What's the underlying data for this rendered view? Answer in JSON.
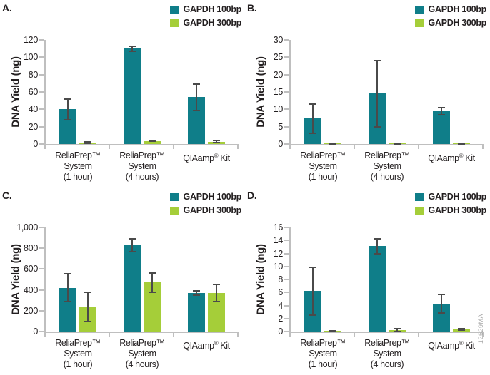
{
  "figure": {
    "watermark": "12629MA",
    "colors": {
      "series_100bp": "#0f7e89",
      "series_300bp": "#a5ce39",
      "axis": "#bfbfbf",
      "error_bar": "#4a4a4a",
      "text": "#231f20",
      "watermark": "#a8a8a8"
    }
  },
  "chart_data": [
    {
      "panel": "A.",
      "type": "bar",
      "title": "",
      "xlabel": "",
      "ylabel": "DNA Yield (ng)",
      "ylim": [
        0,
        120
      ],
      "yticks": [
        0,
        20,
        40,
        60,
        80,
        100,
        120
      ],
      "ytick_labels": [
        "0",
        "20",
        "40",
        "60",
        "80",
        "100",
        "120"
      ],
      "grid": false,
      "legend_position": "top-right",
      "categories": [
        "ReliaPrep™ System (1 hour)",
        "ReliaPrep™ System (4 hours)",
        "QIAamp® Kit"
      ],
      "category_lines": [
        [
          "ReliaPrep™",
          "System",
          "(1 hour)"
        ],
        [
          "ReliaPrep™",
          "System",
          "(4 hours)"
        ],
        [
          "QIAamp® Kit"
        ]
      ],
      "series": [
        {
          "name": "GAPDH 100bp",
          "values": [
            40,
            110,
            54
          ],
          "errors": [
            12,
            3,
            15
          ]
        },
        {
          "name": "GAPDH 300bp",
          "values": [
            1.5,
            3.5,
            2.8
          ],
          "errors": [
            0.7,
            0.5,
            1.2
          ]
        }
      ]
    },
    {
      "panel": "B.",
      "type": "bar",
      "title": "",
      "xlabel": "",
      "ylabel": "DNA Yield (ng)",
      "ylim": [
        0,
        30
      ],
      "yticks": [
        0,
        5,
        10,
        15,
        20,
        25,
        30
      ],
      "ytick_labels": [
        "0",
        "5",
        "10",
        "15",
        "20",
        "25",
        "30"
      ],
      "grid": false,
      "legend_position": "top-right",
      "categories": [
        "ReliaPrep™ System (1 hour)",
        "ReliaPrep™ System (4 hours)",
        "QIAamp® Kit"
      ],
      "category_lines": [
        [
          "ReliaPrep™",
          "System",
          "(1 hour)"
        ],
        [
          "ReliaPrep™",
          "System",
          "(4 hours)"
        ],
        [
          "QIAamp® Kit"
        ]
      ],
      "series": [
        {
          "name": "GAPDH 100bp",
          "values": [
            7.3,
            14.5,
            9.5
          ],
          "errors": [
            4.2,
            9.5,
            1.0
          ]
        },
        {
          "name": "GAPDH 300bp",
          "values": [
            0.1,
            0.2,
            0.2
          ],
          "errors": [
            0.05,
            0.1,
            0.1
          ]
        }
      ]
    },
    {
      "panel": "C.",
      "type": "bar",
      "title": "",
      "xlabel": "",
      "ylabel": "DNA Yield (ng)",
      "ylim": [
        0,
        1000
      ],
      "yticks": [
        0,
        200,
        400,
        600,
        800,
        1000
      ],
      "ytick_labels": [
        "0",
        "200",
        "400",
        "600",
        "800",
        "1,000"
      ],
      "grid": false,
      "legend_position": "top-right",
      "categories": [
        "ReliaPrep™ System (1 hour)",
        "ReliaPrep™ System (4 hours)",
        "QIAamp® Kit"
      ],
      "category_lines": [
        [
          "ReliaPrep™",
          "System",
          "(1 hour)"
        ],
        [
          "ReliaPrep™",
          "System",
          "(4 hours)"
        ],
        [
          "QIAamp® Kit"
        ]
      ],
      "series": [
        {
          "name": "GAPDH 100bp",
          "values": [
            420,
            830,
            370
          ],
          "errors": [
            135,
            60,
            20
          ]
        },
        {
          "name": "GAPDH 300bp",
          "values": [
            235,
            470,
            370
          ],
          "errors": [
            140,
            95,
            85
          ]
        }
      ]
    },
    {
      "panel": "D.",
      "type": "bar",
      "title": "",
      "xlabel": "",
      "ylabel": "DNA Yield (ng)",
      "ylim": [
        0,
        16
      ],
      "yticks": [
        0,
        2,
        4,
        6,
        8,
        10,
        12,
        14,
        16
      ],
      "ytick_labels": [
        "0",
        "2",
        "4",
        "6",
        "8",
        "10",
        "12",
        "14",
        "16"
      ],
      "grid": false,
      "legend_position": "top-right",
      "categories": [
        "ReliaPrep™ System (1 hour)",
        "ReliaPrep™ System (4 hours)",
        "QIAamp® Kit"
      ],
      "category_lines": [
        [
          "ReliaPrep™",
          "System",
          "(1 hour)"
        ],
        [
          "ReliaPrep™",
          "System",
          "(4 hours)"
        ],
        [
          "QIAamp® Kit"
        ]
      ],
      "series": [
        {
          "name": "GAPDH 100bp",
          "values": [
            6.2,
            13.1,
            4.3
          ],
          "errors": [
            3.7,
            1.1,
            1.4
          ]
        },
        {
          "name": "GAPDH 300bp",
          "values": [
            0.1,
            0.25,
            0.3
          ],
          "errors": [
            0.05,
            0.2,
            0.1
          ]
        }
      ]
    }
  ]
}
